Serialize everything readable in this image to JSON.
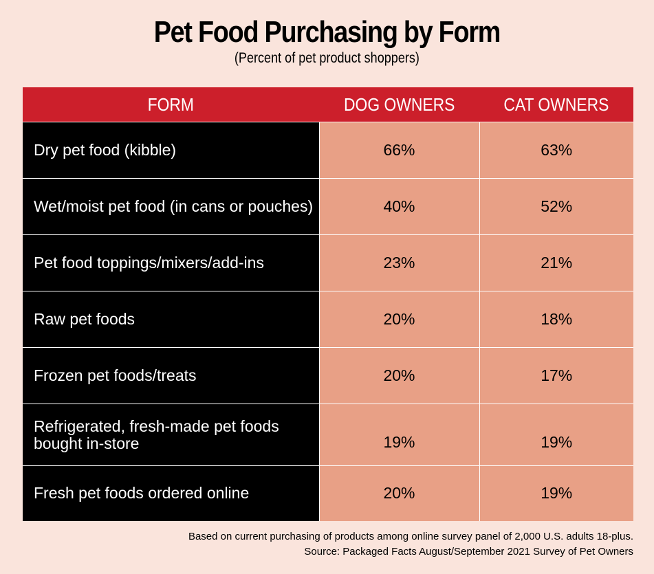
{
  "title": "Pet Food Purchasing by Form",
  "subtitle": "(Percent of pet product shoppers)",
  "columns": [
    "FORM",
    "DOG OWNERS",
    "CAT OWNERS"
  ],
  "rows": [
    {
      "form": "Dry pet food (kibble)",
      "dog": "66%",
      "cat": "63%"
    },
    {
      "form": "Wet/moist pet food (in cans or pouches)",
      "dog": "40%",
      "cat": "52%"
    },
    {
      "form": "Pet food toppings/mixers/add-ins",
      "dog": "23%",
      "cat": "21%"
    },
    {
      "form": "Raw pet foods",
      "dog": "20%",
      "cat": "18%"
    },
    {
      "form": "Frozen pet foods/treats",
      "dog": "20%",
      "cat": "17%"
    },
    {
      "form": "Refrigerated, fresh-made pet foods bought in-store",
      "dog": "19%",
      "cat": "19%"
    },
    {
      "form": "Fresh pet foods ordered online",
      "dog": "20%",
      "cat": "19%"
    }
  ],
  "footnote": "Based on current purchasing of products among online survey panel of 2,000 U.S. adults 18-plus.",
  "source": "Source: Packaged Facts August/September 2021 Survey of Pet Owners",
  "colors": {
    "background": "#fae4dc",
    "header": "#cc1f2b",
    "form_cells": "#000000",
    "value_cells": "#e8a086"
  },
  "chart_data": {
    "type": "table",
    "title": "Pet Food Purchasing by Form",
    "subtitle": "(Percent of pet product shoppers)",
    "columns": [
      "FORM",
      "DOG OWNERS",
      "CAT OWNERS"
    ],
    "categories": [
      "Dry pet food (kibble)",
      "Wet/moist pet food (in cans or pouches)",
      "Pet food toppings/mixers/add-ins",
      "Raw pet foods",
      "Frozen pet foods/treats",
      "Refrigerated, fresh-made pet foods bought in-store",
      "Fresh pet foods ordered online"
    ],
    "series": [
      {
        "name": "DOG OWNERS",
        "values": [
          66,
          40,
          23,
          20,
          20,
          19,
          20
        ]
      },
      {
        "name": "CAT OWNERS",
        "values": [
          63,
          52,
          21,
          18,
          17,
          19,
          19
        ]
      }
    ]
  }
}
